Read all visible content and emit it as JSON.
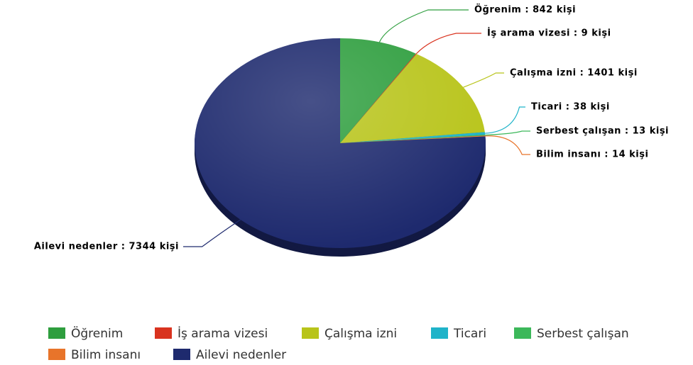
{
  "chart_data": {
    "type": "pie",
    "categories": [
      "Öğrenim",
      "İş arama vizesi",
      "Çalışma izni",
      "Ticari",
      "Serbest çalışan",
      "Bilim insanı",
      "Ailevi nedenler"
    ],
    "values": [
      842,
      9,
      1401,
      38,
      13,
      14,
      7344
    ],
    "value_labels": [
      "Öğrenim : 842 kişi",
      "İş arama vizesi : 9 kişi",
      "Çalışma izni : 1401 kişi",
      "Ticari : 38 kişi",
      "Serbest çalışan : 13 kişi",
      "Bilim insanı : 14 kişi",
      "Ailevi nedenler : 7344 kişi"
    ],
    "colors": [
      "#2e9e3e",
      "#d9331f",
      "#b8c41a",
      "#1fb3c9",
      "#3cb85a",
      "#e8742a",
      "#1e2a6e"
    ],
    "legend": "bottom"
  }
}
